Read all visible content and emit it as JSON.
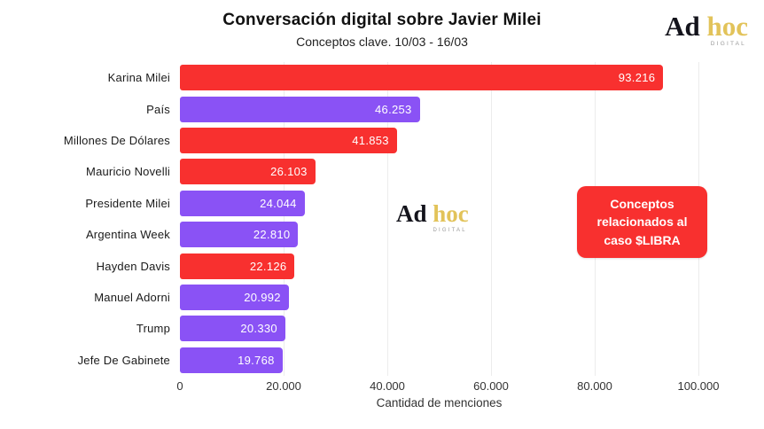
{
  "header": {
    "title": "Conversación digital sobre Javier Milei",
    "subtitle": "Conceptos clave. 10/03 - 16/03"
  },
  "brand": {
    "ad": "Ad",
    "hoc": "hoc",
    "digital": "DIGITAL",
    "gold": "#e2c35a",
    "black": "#14141c"
  },
  "annotation": {
    "text": "Conceptos relacionados al caso $LIBRA",
    "background": "#f8302f",
    "text_color": "#ffffff"
  },
  "colors": {
    "red": "#f8302f",
    "purple": "#8a52f5",
    "grid": "#ececec",
    "value_text": "#ffffff"
  },
  "chart_data": {
    "type": "bar",
    "orientation": "horizontal",
    "title": "Conversación digital sobre Javier Milei",
    "subtitle": "Conceptos clave. 10/03 - 16/03",
    "xlabel": "Cantidad de menciones",
    "xlim": [
      0,
      100000
    ],
    "grid": "vertical, light gray, on 20.000 intervals",
    "legend": "none (red annotation box explains red bars = conceptos relacionados al caso $LIBRA)",
    "categories": [
      "Karina Milei",
      "País",
      "Millones De Dólares",
      "Mauricio Novelli",
      "Presidente Milei",
      "Argentina Week",
      "Hayden Davis",
      "Manuel Adorni",
      "Trump",
      "Jefe De Gabinete"
    ],
    "values": [
      93216,
      46253,
      41853,
      26103,
      24044,
      22810,
      22126,
      20992,
      20330,
      19768
    ],
    "bars": [
      {
        "category": "Karina Milei",
        "value": 93216,
        "label": "93.216",
        "color": "#f8302f",
        "libra_related": true
      },
      {
        "category": "País",
        "value": 46253,
        "label": "46.253",
        "color": "#8a52f5",
        "libra_related": false
      },
      {
        "category": "Millones De Dólares",
        "value": 41853,
        "label": "41.853",
        "color": "#f8302f",
        "libra_related": true
      },
      {
        "category": "Mauricio Novelli",
        "value": 26103,
        "label": "26.103",
        "color": "#f8302f",
        "libra_related": true
      },
      {
        "category": "Presidente Milei",
        "value": 24044,
        "label": "24.044",
        "color": "#8a52f5",
        "libra_related": false
      },
      {
        "category": "Argentina Week",
        "value": 22810,
        "label": "22.810",
        "color": "#8a52f5",
        "libra_related": false
      },
      {
        "category": "Hayden Davis",
        "value": 22126,
        "label": "22.126",
        "color": "#f8302f",
        "libra_related": true
      },
      {
        "category": "Manuel Adorni",
        "value": 20992,
        "label": "20.992",
        "color": "#8a52f5",
        "libra_related": false
      },
      {
        "category": "Trump",
        "value": 20330,
        "label": "20.330",
        "color": "#8a52f5",
        "libra_related": false
      },
      {
        "category": "Jefe De Gabinete",
        "value": 19768,
        "label": "19.768",
        "color": "#8a52f5",
        "libra_related": false
      }
    ],
    "xticks": [
      {
        "value": 0,
        "label": "0"
      },
      {
        "value": 20000,
        "label": "20.000"
      },
      {
        "value": 40000,
        "label": "40.000"
      },
      {
        "value": 60000,
        "label": "60.000"
      },
      {
        "value": 80000,
        "label": "80.000"
      },
      {
        "value": 100000,
        "label": "100.000"
      }
    ]
  }
}
